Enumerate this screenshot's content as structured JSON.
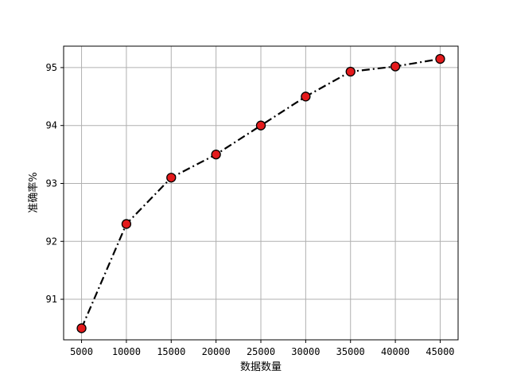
{
  "chart_data": {
    "type": "line",
    "title": "",
    "xlabel": "数据数量",
    "ylabel": "准确率%",
    "x": [
      5000,
      10000,
      15000,
      20000,
      25000,
      30000,
      35000,
      40000,
      45000
    ],
    "series": [
      {
        "values": [
          90.5,
          92.3,
          93.1,
          93.5,
          94.0,
          94.5,
          94.93,
          95.02,
          95.15
        ]
      }
    ],
    "xticks": [
      5000,
      10000,
      15000,
      20000,
      25000,
      30000,
      35000,
      40000,
      45000
    ],
    "yticks": [
      91,
      92,
      93,
      94,
      95
    ],
    "xlim": [
      3000,
      47000
    ],
    "ylim": [
      90.3,
      95.37
    ],
    "grid": true,
    "line_style": "dash-dot",
    "line_color": "#000000",
    "marker": "circle",
    "marker_fill": "#e41a1c",
    "marker_edge": "#000000"
  }
}
